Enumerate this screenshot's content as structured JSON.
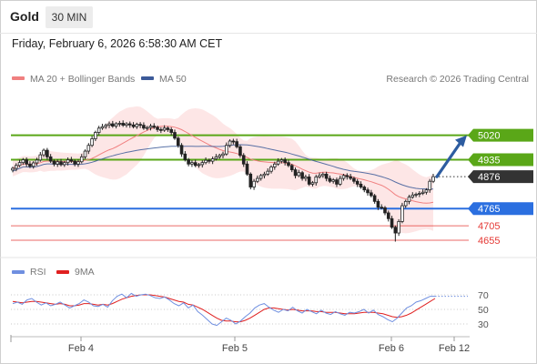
{
  "header": {
    "symbol": "Gold",
    "timeframe": "30 MIN",
    "datetime": "Friday, February 6, 2026 6:58:30 AM CET"
  },
  "legend": {
    "ma20_label": "MA 20 + Bollinger Bands",
    "ma50_label": "MA 50",
    "credit": "Research © 2026 Trading Central",
    "rsi_label": "RSI",
    "rsi_ma_label": "9MA"
  },
  "colors": {
    "ma20": "#f08080",
    "bollinger_fill": "#fde3e3",
    "ma50": "#3c5a99",
    "resistance": "#5aa718",
    "support": "#2b6fe0",
    "support_lower": "#e53935",
    "current": "#333333",
    "forecast_arrow": "#2d5ca0",
    "rsi": "#6f8fe0",
    "rsi_ma": "#e02020"
  },
  "chart_data": [
    {
      "type": "candlestick",
      "title": "Gold",
      "timeframe": "30 MIN",
      "x_axis": {
        "labels": [
          "Feb 4",
          "Feb 5",
          "Feb 6",
          "Feb 12"
        ]
      },
      "ylim": [
        4620,
        5095
      ],
      "levels": [
        {
          "value": 5020,
          "label": "5020",
          "kind": "resistance"
        },
        {
          "value": 4935,
          "label": "4935",
          "kind": "resistance"
        },
        {
          "value": 4876,
          "label": "4876",
          "kind": "current"
        },
        {
          "value": 4765,
          "label": "4765",
          "kind": "support"
        },
        {
          "value": 4705,
          "label": "4705",
          "kind": "support"
        },
        {
          "value": 4655,
          "label": "4655",
          "kind": "support"
        }
      ],
      "forecast": {
        "from": 4876,
        "to": 5020
      },
      "series": [
        {
          "name": "MA 20 + Bollinger Bands"
        },
        {
          "name": "MA 50"
        }
      ],
      "candles_close": [
        4905,
        4915,
        4925,
        4935,
        4920,
        4912,
        4924,
        4934,
        4952,
        4968,
        4945,
        4930,
        4920,
        4928,
        4918,
        4925,
        4935,
        4930,
        4920,
        4928,
        4945,
        4965,
        4985,
        5008,
        5030,
        5045,
        5050,
        5055,
        5060,
        5052,
        5060,
        5062,
        5055,
        5060,
        5056,
        5050,
        5058,
        5055,
        5045,
        5047,
        5052,
        5048,
        5040,
        5038,
        5045,
        5040,
        5030,
        5010,
        4985,
        4955,
        4935,
        4920,
        4925,
        4915,
        4918,
        4925,
        4933,
        4930,
        4938,
        4945,
        4950,
        4955,
        4985,
        5000,
        4998,
        4980,
        4950,
        4920,
        4885,
        4840,
        4860,
        4870,
        4880,
        4885,
        4895,
        4910,
        4920,
        4930,
        4935,
        4925,
        4915,
        4900,
        4880,
        4890,
        4870,
        4875,
        4850,
        4855,
        4875,
        4880,
        4885,
        4870,
        4860,
        4865,
        4850,
        4870,
        4880,
        4876,
        4870,
        4860,
        4850,
        4840,
        4830,
        4820,
        4810,
        4790,
        4770,
        4768,
        4750,
        4730,
        4700,
        4680,
        4720,
        4775,
        4790,
        4805,
        4812,
        4815,
        4818,
        4822,
        4830,
        4860,
        4876
      ],
      "rsi": {
        "ylim": [
          15,
          85
        ],
        "ticks": [
          70,
          50,
          30
        ],
        "series": [
          {
            "name": "RSI",
            "values": [
              58,
              60,
              57,
              63,
              65,
              60,
              56,
              59,
              55,
              57,
              60,
              56,
              52,
              55,
              58,
              63,
              60,
              55,
              54,
              57,
              53,
              62,
              68,
              71,
              66,
              72,
              68,
              70,
              71,
              69,
              66,
              65,
              67,
              63,
              58,
              55,
              59,
              52,
              56,
              47,
              42,
              36,
              30,
              28,
              33,
              38,
              35,
              30,
              34,
              40,
              45,
              52,
              56,
              58,
              53,
              49,
              46,
              50,
              48,
              53,
              48,
              45,
              50,
              47,
              44,
              49,
              45,
              43,
              47,
              44,
              42,
              46,
              45,
              47,
              50,
              45,
              49,
              43,
              40,
              36,
              33,
              38,
              45,
              52,
              55,
              60,
              62,
              65,
              68,
              68
            ]
          },
          {
            "name": "9MA",
            "values": [
              61,
              60,
              59,
              60,
              61,
              61,
              60,
              59,
              58,
              57,
              58,
              57,
              55,
              55,
              56,
              58,
              58,
              57,
              56,
              57,
              56,
              58,
              61,
              64,
              66,
              68,
              69,
              70,
              70,
              70,
              69,
              68,
              67,
              65,
              63,
              61,
              60,
              57,
              56,
              53,
              50,
              46,
              42,
              38,
              35,
              34,
              34,
              33,
              33,
              35,
              38,
              42,
              46,
              50,
              52,
              52,
              51,
              50,
              49,
              50,
              49,
              48,
              48,
              48,
              47,
              47,
              46,
              46,
              46,
              45,
              44,
              44,
              44,
              45,
              46,
              46,
              46,
              45,
              44,
              42,
              40,
              39,
              40,
              42,
              45,
              49,
              53,
              57,
              61,
              65
            ]
          }
        ]
      }
    }
  ]
}
